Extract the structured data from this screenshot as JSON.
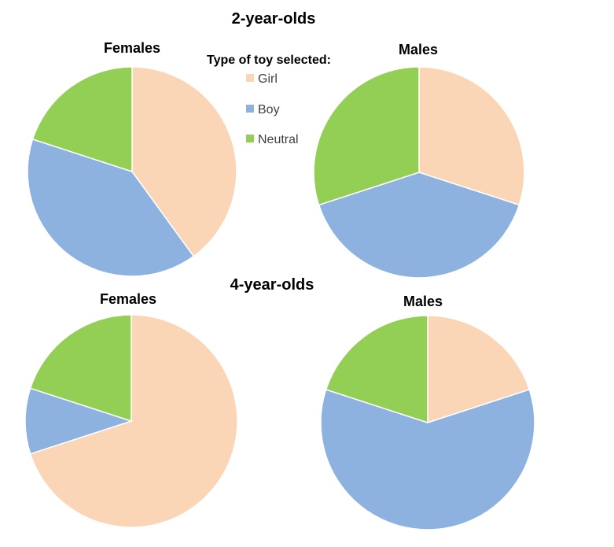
{
  "groups": [
    {
      "title": "2-year-olds"
    },
    {
      "title": "4-year-olds"
    }
  ],
  "legend": {
    "title": "Type of toy selected:",
    "items": [
      {
        "label": "Girl",
        "color": "#FAD5B6"
      },
      {
        "label": "Boy",
        "color": "#8EB2E0"
      },
      {
        "label": "Neutral",
        "color": "#93CE55"
      }
    ]
  },
  "chart_data": [
    {
      "type": "pie",
      "group": "2-year-olds",
      "title": "Females",
      "categories": [
        "Girl",
        "Boy",
        "Neutral"
      ],
      "values": [
        40,
        40,
        20
      ],
      "colors": [
        "#FAD5B6",
        "#8EB2E0",
        "#93CE55"
      ]
    },
    {
      "type": "pie",
      "group": "2-year-olds",
      "title": "Males",
      "categories": [
        "Girl",
        "Boy",
        "Neutral"
      ],
      "values": [
        30,
        40,
        30
      ],
      "colors": [
        "#FAD5B6",
        "#8EB2E0",
        "#93CE55"
      ]
    },
    {
      "type": "pie",
      "group": "4-year-olds",
      "title": "Females",
      "categories": [
        "Girl",
        "Boy",
        "Neutral"
      ],
      "values": [
        70,
        10,
        20
      ],
      "colors": [
        "#FAD5B6",
        "#8EB2E0",
        "#93CE55"
      ]
    },
    {
      "type": "pie",
      "group": "4-year-olds",
      "title": "Males",
      "categories": [
        "Girl",
        "Boy",
        "Neutral"
      ],
      "values": [
        20,
        60,
        20
      ],
      "colors": [
        "#FAD5B6",
        "#8EB2E0",
        "#93CE55"
      ]
    }
  ]
}
